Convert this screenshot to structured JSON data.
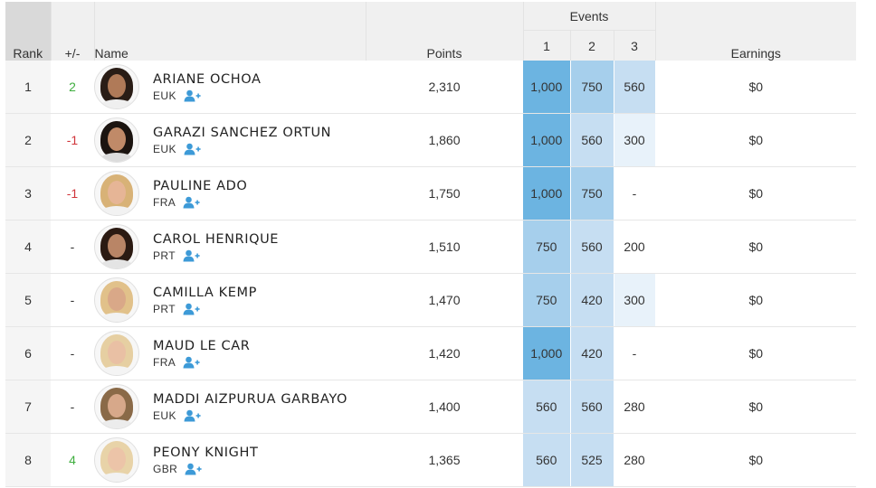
{
  "headers": {
    "rank": "Rank",
    "change": "+/-",
    "name": "Name",
    "points": "Points",
    "events": "Events",
    "event_numbers": [
      "1",
      "2",
      "3"
    ],
    "earnings": "Earnings"
  },
  "icons": {
    "follow": "add-user-icon",
    "follow_color": "#3d9ad7"
  },
  "heat_colors": {
    "1000": "#6cb4e1",
    "750": "#a6cfec",
    "560": "#c6def2",
    "525": "#c6def2",
    "420": "#c6def2",
    "300": "#e8f2fa",
    "280": "#ffffff",
    "200": "#ffffff",
    "-": "#ffffff"
  },
  "rows": [
    {
      "rank": "1",
      "change": "2",
      "trend": "up",
      "name": "ARIANE OCHOA",
      "country": "EUK",
      "points": "2,310",
      "events": [
        "1,000",
        "750",
        "560"
      ],
      "event_levels": [
        "1000",
        "750",
        "560"
      ],
      "earnings": "$0",
      "avatar": {
        "hair": "#2a1d16",
        "skin": "#b07a58",
        "body": "#efefef"
      }
    },
    {
      "rank": "2",
      "change": "-1",
      "trend": "down",
      "name": "GARAZI SANCHEZ ORTUN",
      "country": "EUK",
      "points": "1,860",
      "events": [
        "1,000",
        "560",
        "300"
      ],
      "event_levels": [
        "1000",
        "560",
        "300"
      ],
      "earnings": "$0",
      "avatar": {
        "hair": "#1b1410",
        "skin": "#c08a68",
        "body": "#dcdcdc"
      }
    },
    {
      "rank": "3",
      "change": "-1",
      "trend": "down",
      "name": "PAULINE ADO",
      "country": "FRA",
      "points": "1,750",
      "events": [
        "1,000",
        "750",
        "-"
      ],
      "event_levels": [
        "1000",
        "750",
        "-"
      ],
      "earnings": "$0",
      "avatar": {
        "hair": "#d8b277",
        "skin": "#e6b596",
        "body": "#f2f2f2"
      }
    },
    {
      "rank": "4",
      "change": "-",
      "trend": "same",
      "name": "CAROL HENRIQUE",
      "country": "PRT",
      "points": "1,510",
      "events": [
        "750",
        "560",
        "200"
      ],
      "event_levels": [
        "750",
        "560",
        "200"
      ],
      "earnings": "$0",
      "avatar": {
        "hair": "#2b1a12",
        "skin": "#b98566",
        "body": "#e4e4e4"
      }
    },
    {
      "rank": "5",
      "change": "-",
      "trend": "same",
      "name": "CAMILLA KEMP",
      "country": "PRT",
      "points": "1,470",
      "events": [
        "750",
        "420",
        "300"
      ],
      "event_levels": [
        "750",
        "420",
        "300"
      ],
      "earnings": "$0",
      "avatar": {
        "hair": "#e1c18a",
        "skin": "#d9a888",
        "body": "#f2f2f2"
      }
    },
    {
      "rank": "6",
      "change": "-",
      "trend": "same",
      "name": "MAUD LE CAR",
      "country": "FRA",
      "points": "1,420",
      "events": [
        "1,000",
        "420",
        "-"
      ],
      "event_levels": [
        "1000",
        "420",
        "-"
      ],
      "earnings": "$0",
      "avatar": {
        "hair": "#e6cfa2",
        "skin": "#e9c0a4",
        "body": "#f4f4f4"
      }
    },
    {
      "rank": "7",
      "change": "-",
      "trend": "same",
      "name": "MADDI AIZPURUA GARBAYO",
      "country": "EUK",
      "points": "1,400",
      "events": [
        "560",
        "560",
        "280"
      ],
      "event_levels": [
        "560",
        "560",
        "280"
      ],
      "earnings": "$0",
      "avatar": {
        "hair": "#8a6a48",
        "skin": "#d7a88a",
        "body": "#ececec"
      }
    },
    {
      "rank": "8",
      "change": "4",
      "trend": "up",
      "name": "PEONY KNIGHT",
      "country": "GBR",
      "points": "1,365",
      "events": [
        "560",
        "525",
        "280"
      ],
      "event_levels": [
        "560",
        "525",
        "280"
      ],
      "earnings": "$0",
      "avatar": {
        "hair": "#e8d3a8",
        "skin": "#ecc4a8",
        "body": "#f2f2f2"
      }
    }
  ]
}
